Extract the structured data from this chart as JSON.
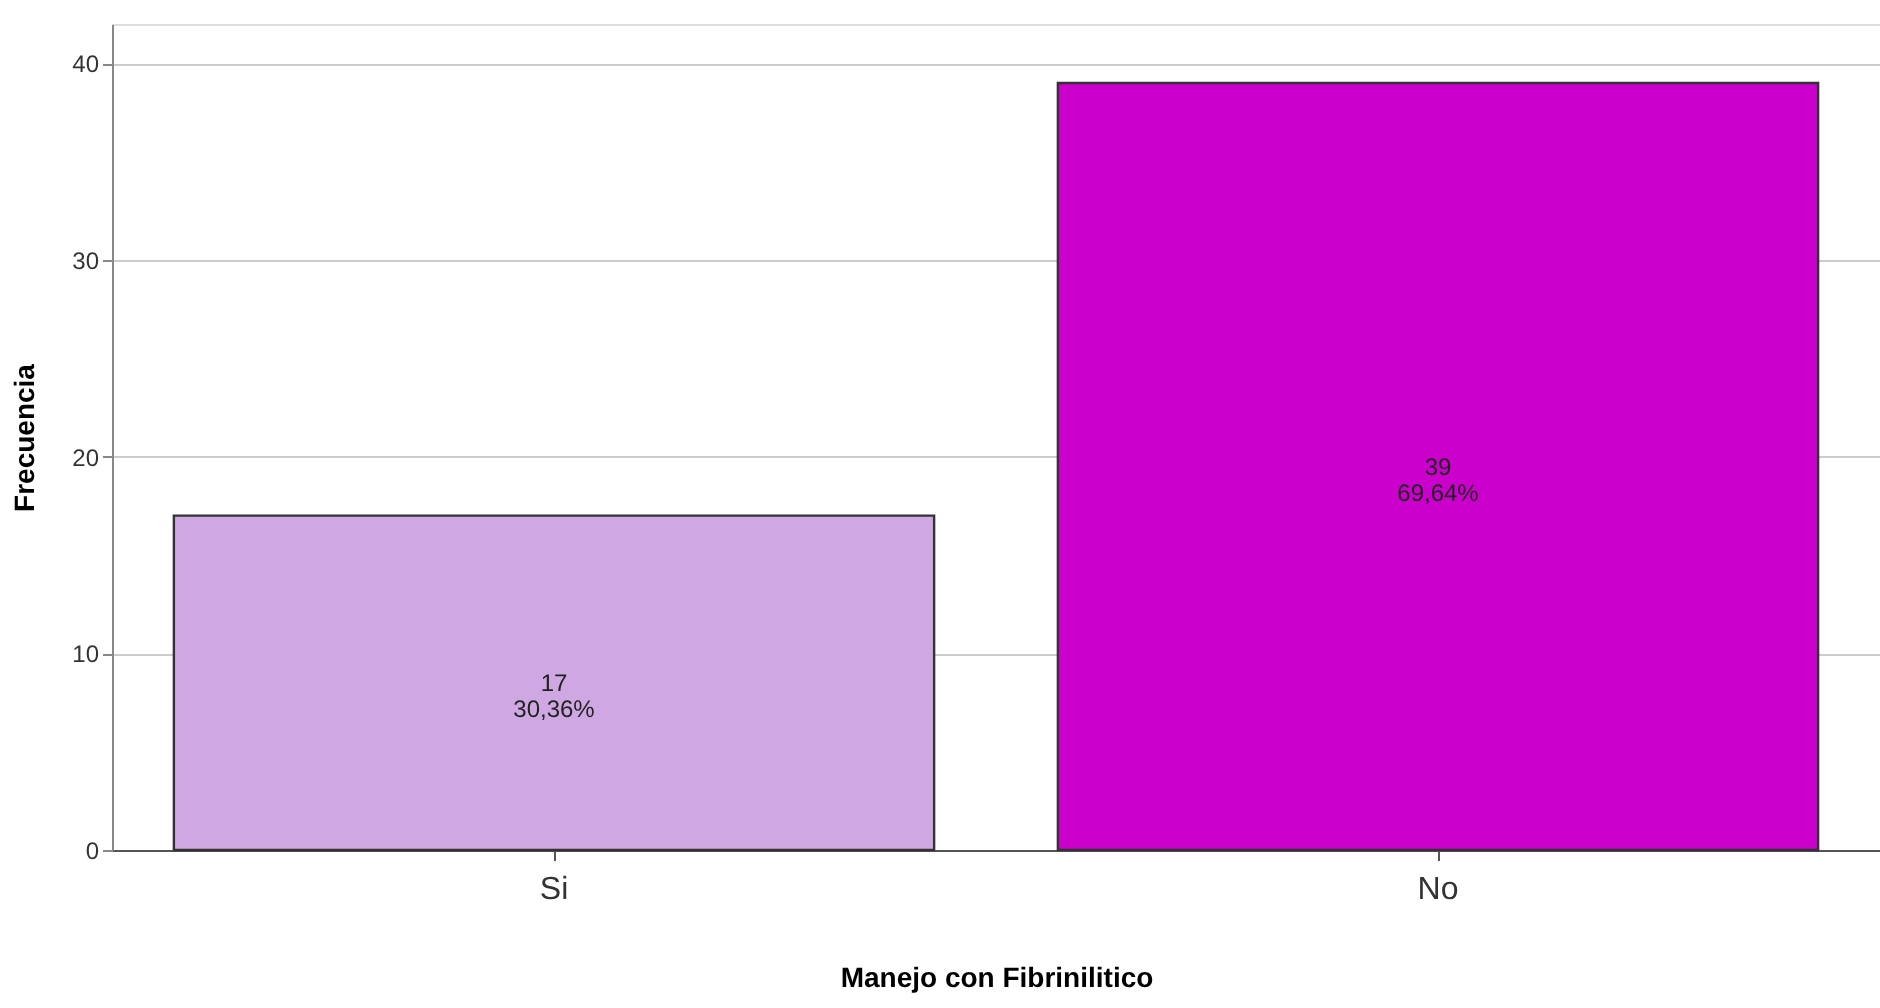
{
  "chart_data": {
    "type": "bar",
    "xlabel": "Manejo con Fibrinilitico",
    "ylabel": "Frecuencia",
    "categories": [
      "Si",
      "No"
    ],
    "values": [
      17,
      39
    ],
    "colors": [
      "#cfa8e3",
      "#cc00cc"
    ],
    "value_labels": [
      "17\n30,36%",
      "39\n69,64%"
    ],
    "ylim": [
      0,
      42
    ],
    "yticks": [
      0,
      10,
      20,
      30,
      40
    ],
    "grid": "y"
  }
}
